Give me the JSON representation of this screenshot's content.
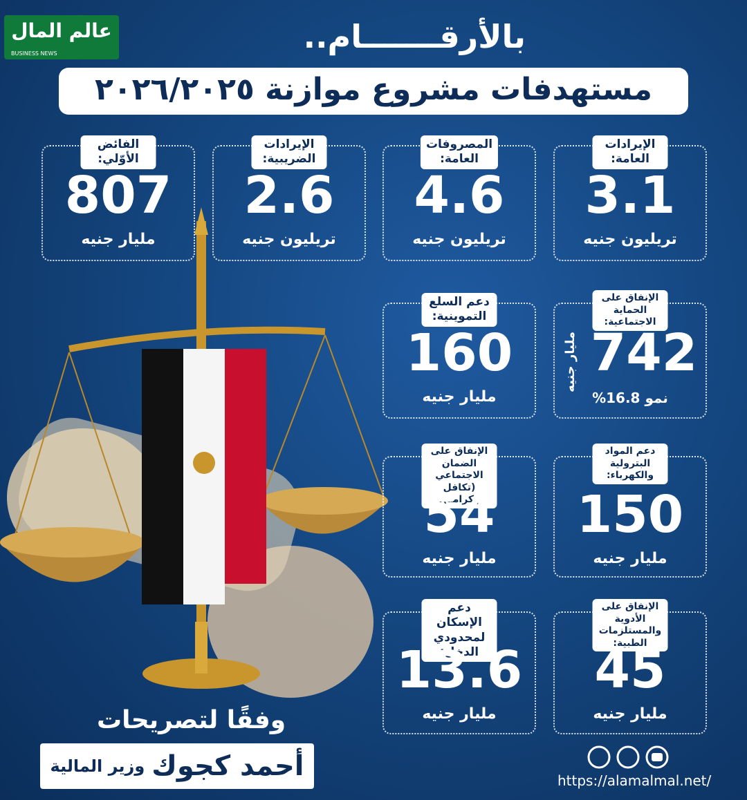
{
  "logo": {
    "title": "عالم المال",
    "subtitle": "BUSINESS NEWS"
  },
  "header": {
    "kicker": "بالأرقـــــــام..",
    "title": "مستهدفات مشروع موازنة ٢٠٢٦/٢٠٢٥"
  },
  "cards": [
    {
      "label": "الإيرادات العامة:",
      "value": 3.1,
      "unit": "تريليون جنيه"
    },
    {
      "label": "المصروفات العامة:",
      "value": 4.6,
      "unit": "تريليون جنيه"
    },
    {
      "label": "الإيرادات الضريبية:",
      "value": 2.6,
      "unit": "تريليون جنيه"
    },
    {
      "label": "الفائض الأوّلي:",
      "value": 807,
      "unit": "مليار جنيه"
    },
    {
      "label": "الإنفاق على الحماية الاجتماعية:",
      "value": 742,
      "unit": "مليار جنيه",
      "note": "نمو 16.8%"
    },
    {
      "label": "دعم السلع التموينية:",
      "value": 160,
      "unit": "مليار جنيه"
    },
    {
      "label": "دعم المواد البترولية والكهرباء:",
      "value": 150,
      "unit": "مليار جنيه"
    },
    {
      "label": "الإنفاق على الضمان الاجتماعي (تكافل وكرامة):",
      "value": 54,
      "unit": "مليار جنيه"
    },
    {
      "label": "الإنفاق على الأدوية والمستلزمات الطبية:",
      "value": 45,
      "unit": "مليار جنيه"
    },
    {
      "label": "دعم الإسكان لمحدودي الدخل:",
      "value": 13.6,
      "unit": "مليار جنيه"
    }
  ],
  "footer": {
    "source": "وفقًا لتصريحات",
    "name": "أحمد كجوك",
    "role": "وزير المالية",
    "url": "https://alamalmal.net/"
  }
}
